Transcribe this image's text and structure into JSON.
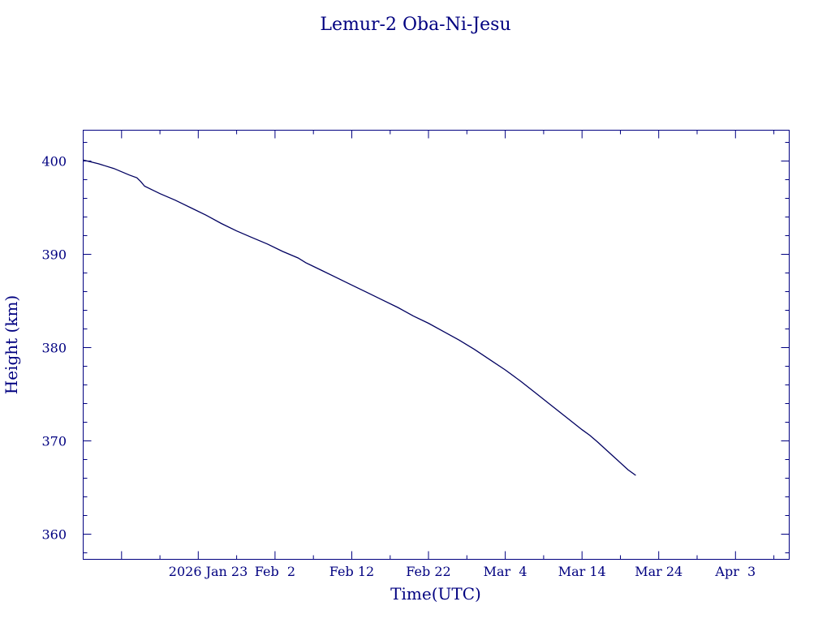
{
  "chart_data": {
    "type": "line",
    "title": "Lemur-2 Oba-Ni-Jesu",
    "xlabel": "Time(UTC)",
    "ylabel": "Height (km)",
    "x_axis": {
      "range": [
        "2026-01-08",
        "2026-04-10"
      ],
      "ticks": [
        {
          "date": "2026-01-23",
          "label": "2026 Jan 23"
        },
        {
          "date": "2026-02-02",
          "label": "Feb  2"
        },
        {
          "date": "2026-02-12",
          "label": "Feb 12"
        },
        {
          "date": "2026-02-22",
          "label": "Feb 22"
        },
        {
          "date": "2026-03-04",
          "label": "Mar  4"
        },
        {
          "date": "2026-03-14",
          "label": "Mar 14"
        },
        {
          "date": "2026-03-24",
          "label": "Mar 24"
        },
        {
          "date": "2026-04-03",
          "label": "Apr  3"
        }
      ]
    },
    "y_axis": {
      "range": [
        357.3,
        403.3
      ],
      "ticks": [
        360,
        370,
        380,
        390,
        400
      ]
    },
    "grid": false,
    "legend": "none",
    "series": [
      {
        "x": [
          "2026-01-08",
          "2026-01-10",
          "2026-01-12",
          "2026-01-14",
          "2026-01-15",
          "2026-01-15T12:00",
          "2026-01-16",
          "2026-01-17",
          "2026-01-18",
          "2026-01-20",
          "2026-01-22",
          "2026-01-24",
          "2026-01-26",
          "2026-01-28",
          "2026-01-30",
          "2026-02-01",
          "2026-02-03",
          "2026-02-05",
          "2026-02-06",
          "2026-02-08",
          "2026-02-10",
          "2026-02-12",
          "2026-02-14",
          "2026-02-16",
          "2026-02-18",
          "2026-02-20",
          "2026-02-22",
          "2026-02-24",
          "2026-02-26",
          "2026-02-28",
          "2026-03-02",
          "2026-03-04",
          "2026-03-06",
          "2026-03-08",
          "2026-03-10",
          "2026-03-12",
          "2026-03-14",
          "2026-03-15",
          "2026-03-16",
          "2026-03-18",
          "2026-03-20",
          "2026-03-21"
        ],
        "y": [
          400.1,
          399.7,
          399.2,
          398.5,
          398.2,
          397.8,
          397.3,
          396.9,
          396.5,
          395.8,
          395.0,
          394.2,
          393.3,
          392.5,
          391.8,
          391.1,
          390.3,
          389.6,
          389.1,
          388.3,
          387.5,
          386.7,
          385.9,
          385.1,
          384.3,
          383.4,
          382.6,
          381.7,
          380.8,
          379.8,
          378.7,
          377.6,
          376.4,
          375.1,
          373.8,
          372.5,
          371.2,
          370.6,
          369.9,
          368.4,
          366.9,
          366.3
        ]
      }
    ]
  }
}
